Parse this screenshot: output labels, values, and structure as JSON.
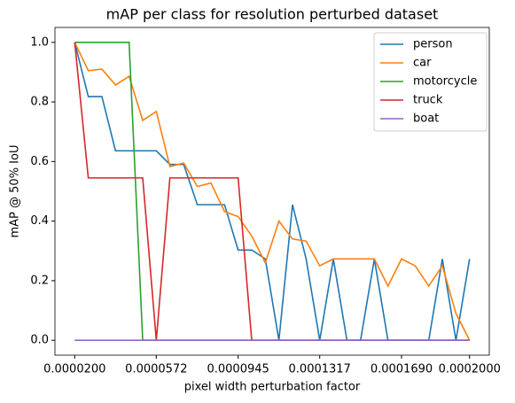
{
  "chart_data": {
    "type": "line",
    "title": "mAP per class for resolution perturbed dataset",
    "xlabel": "pixel width perturbation factor",
    "ylabel": "mAP @ 50% IoU",
    "x": [
      2e-05,
      2.62e-05,
      3.24e-05,
      3.86e-05,
      4.48e-05,
      5.1e-05,
      5.72e-05,
      6.34e-05,
      6.97e-05,
      7.59e-05,
      8.21e-05,
      8.83e-05,
      9.45e-05,
      0.0001007,
      0.0001069,
      0.0001131,
      0.0001193,
      0.0001255,
      0.0001317,
      0.0001379,
      0.0001441,
      0.0001503,
      0.0001566,
      0.0001628,
      0.000169,
      0.0001752,
      0.0001814,
      0.0001876,
      0.0001938,
      0.0002
    ],
    "series": [
      {
        "name": "person",
        "color": "#1f77b4",
        "values": [
          1.0,
          0.818,
          0.818,
          0.636,
          0.636,
          0.636,
          0.636,
          0.59,
          0.59,
          0.455,
          0.455,
          0.455,
          0.303,
          0.303,
          0.273,
          0,
          0.455,
          0.273,
          0,
          0.273,
          0,
          0,
          0.273,
          0,
          0,
          0,
          0,
          0.273,
          0,
          0.273
        ]
      },
      {
        "name": "car",
        "color": "#ff7f0e",
        "values": [
          1.0,
          0.905,
          0.91,
          0.857,
          0.886,
          0.738,
          0.768,
          0.583,
          0.595,
          0.516,
          0.528,
          0.432,
          0.415,
          0.35,
          0.26,
          0.4,
          0.34,
          0.333,
          0.25,
          0.273,
          0.273,
          0.273,
          0.273,
          0.182,
          0.273,
          0.25,
          0.182,
          0.25,
          0.09,
          0
        ]
      },
      {
        "name": "motorcycle",
        "color": "#2ca02c",
        "values": [
          1.0,
          1.0,
          1.0,
          1.0,
          1.0,
          0,
          0,
          0,
          0,
          0,
          0,
          0,
          0,
          0,
          0,
          0,
          0,
          0,
          0,
          0,
          0,
          0,
          0,
          0,
          0,
          0,
          0,
          0,
          0,
          0
        ]
      },
      {
        "name": "truck",
        "color": "#d62728",
        "values": [
          1.0,
          0.545,
          0.545,
          0.545,
          0.545,
          0.545,
          0,
          0.545,
          0.545,
          0.545,
          0.545,
          0.545,
          0.545,
          0,
          0,
          0,
          0,
          0,
          0,
          0,
          0,
          0,
          0,
          0,
          0,
          0,
          0,
          0,
          0,
          0
        ]
      },
      {
        "name": "boat",
        "color": "#9467bd",
        "values": [
          0,
          0,
          0,
          0,
          0,
          0,
          0,
          0,
          0,
          0,
          0,
          0,
          0,
          0,
          0,
          0,
          0,
          0,
          0,
          0,
          0,
          0,
          0,
          0,
          0,
          0,
          0,
          0,
          0,
          0
        ]
      }
    ],
    "xlim": [
      1.1e-05,
      0.000209
    ],
    "ylim": [
      -0.05,
      1.05
    ],
    "xticks": [
      {
        "value": 2e-05,
        "label": "0.0000200"
      },
      {
        "value": 5.72e-05,
        "label": "0.0000572"
      },
      {
        "value": 9.45e-05,
        "label": "0.0000945"
      },
      {
        "value": 0.0001317,
        "label": "0.0001317"
      },
      {
        "value": 0.000169,
        "label": "0.0001690"
      },
      {
        "value": 0.0002,
        "label": "0.0002000"
      }
    ],
    "yticks": [
      {
        "value": 0,
        "label": "0.0"
      },
      {
        "value": 0.2,
        "label": "0.2"
      },
      {
        "value": 0.4,
        "label": "0.4"
      },
      {
        "value": 0.6,
        "label": "0.6"
      },
      {
        "value": 0.8,
        "label": "0.8"
      },
      {
        "value": 1.0,
        "label": "1.0"
      }
    ],
    "legend": "upper right"
  }
}
